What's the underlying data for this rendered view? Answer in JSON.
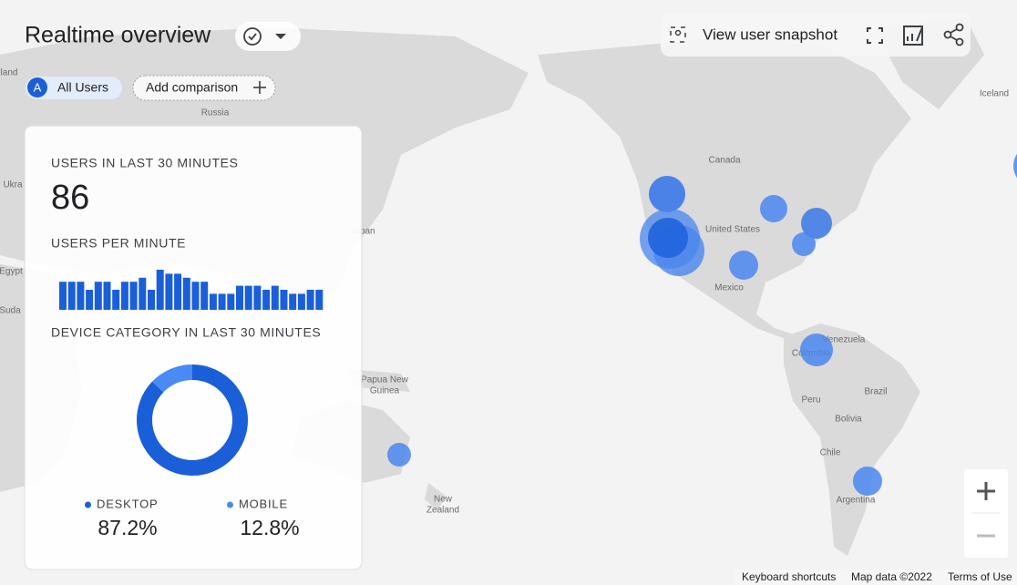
{
  "header": {
    "title": "Realtime overview",
    "snapshot": "View user snapshot"
  },
  "comparisons": {
    "badge": "A",
    "segment": "All Users",
    "add": "Add comparison"
  },
  "card": {
    "users_label": "USERS IN LAST 30 MINUTES",
    "users": 86,
    "per_minute": {
      "type": "bar",
      "title": "USERS PER MINUTE",
      "values": [
        7,
        7,
        7,
        5,
        7,
        7,
        5,
        7,
        7,
        8,
        5,
        10,
        9,
        9,
        8,
        7,
        7,
        4,
        4,
        4,
        6,
        6,
        6,
        5,
        6,
        5,
        4,
        4,
        5,
        5
      ],
      "color": "#1a5fd8"
    },
    "device": {
      "type": "pie",
      "title": "DEVICE CATEGORY IN LAST 30 MINUTES",
      "categories": [
        "DESKTOP",
        "MOBILE"
      ],
      "values": [
        87.2,
        12.8
      ],
      "value_labels": [
        "87.2%",
        "12.8%"
      ],
      "colors": [
        "#1a5fd8",
        "#4a8af4"
      ]
    }
  },
  "map": {
    "labels": [
      "Russia",
      "Canada",
      "United States",
      "Mexico",
      "Venezuela",
      "Colombia",
      "Peru",
      "Brazil",
      "Bolivia",
      "Chile",
      "Argentina",
      "Iceland",
      "Papua New",
      "Guinea",
      "New",
      "Zealand",
      "Japan",
      "land",
      "Ukra",
      "Egypt",
      "Suda"
    ]
  },
  "footer": {
    "shortcuts": "Keyboard shortcuts",
    "map_data": "Map data ©2022",
    "terms": "Terms of Use"
  }
}
